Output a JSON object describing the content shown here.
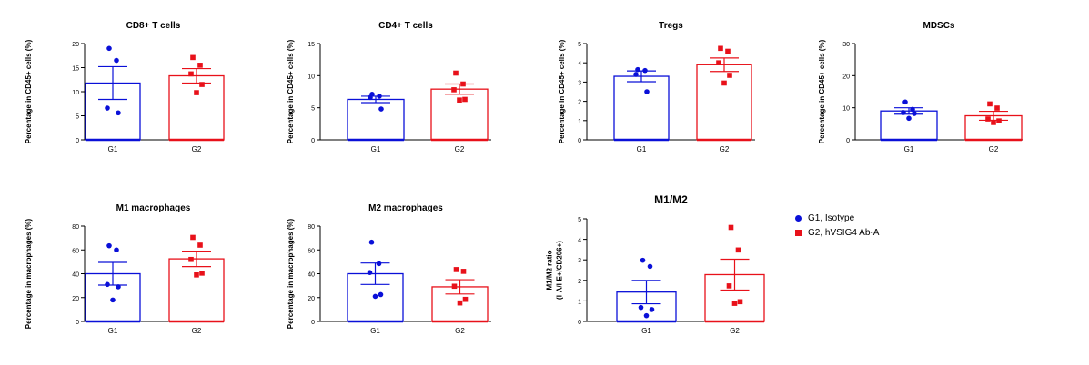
{
  "colors": {
    "g1": "#0a10d8",
    "g2": "#e8111a"
  },
  "legend": [
    {
      "label": "G1, Isotype",
      "marker": "circle",
      "color": "#0a10d8"
    },
    {
      "label": "G2, hVSIG4 Ab-A",
      "marker": "square",
      "color": "#e8111a"
    }
  ],
  "chart_data": [
    {
      "type": "bar",
      "title": "CD8+ T cells",
      "ylabel": "Percentage in CD45+ cells (%)",
      "categories": [
        "G1",
        "G2"
      ],
      "ylim": [
        0,
        20
      ],
      "yticks": [
        0,
        5,
        10,
        15,
        20
      ],
      "values": [
        11.8,
        13.3
      ],
      "sem": [
        3.4,
        1.5
      ],
      "points": [
        [
          19,
          16.5,
          6.6,
          5.6
        ],
        [
          17.1,
          15.5,
          13.7,
          11.5,
          9.8
        ]
      ]
    },
    {
      "type": "bar",
      "title": "CD4+ T cells",
      "ylabel": "Percentage in CD45+ cells (%)",
      "categories": [
        "G1",
        "G2"
      ],
      "ylim": [
        0,
        15
      ],
      "yticks": [
        0,
        5,
        10,
        15
      ],
      "values": [
        6.3,
        7.9
      ],
      "sem": [
        0.5,
        0.8
      ],
      "points": [
        [
          7.1,
          6.8,
          6.6,
          4.8
        ],
        [
          10.4,
          8.7,
          7.8,
          6.3,
          6.2
        ]
      ]
    },
    {
      "type": "bar",
      "title": "Tregs",
      "ylabel": "Percentage in CD45+ cells (%)",
      "categories": [
        "G1",
        "G2"
      ],
      "ylim": [
        0,
        5
      ],
      "yticks": [
        0,
        1,
        2,
        3,
        4,
        5
      ],
      "values": [
        3.3,
        3.9
      ],
      "sem": [
        0.28,
        0.35
      ],
      "points": [
        [
          3.65,
          3.6,
          3.4,
          2.5
        ],
        [
          4.75,
          4.6,
          4.0,
          3.35,
          2.95
        ]
      ]
    },
    {
      "type": "bar",
      "title": "MDSCs",
      "ylabel": "Percentage in CD45+ cells (%)",
      "categories": [
        "G1",
        "G2"
      ],
      "ylim": [
        0,
        30
      ],
      "yticks": [
        0,
        10,
        20,
        30
      ],
      "values": [
        9.0,
        7.5
      ],
      "sem": [
        1.0,
        1.4
      ],
      "points": [
        [
          11.8,
          9.5,
          8.5,
          8.2,
          6.7
        ],
        [
          11.2,
          9.9,
          6.5,
          5.9,
          5.4
        ]
      ]
    },
    {
      "type": "bar",
      "title": "M1 macrophages",
      "ylabel": "Percentage in macrophages (%)",
      "categories": [
        "G1",
        "G2"
      ],
      "ylim": [
        0,
        80
      ],
      "yticks": [
        0,
        20,
        40,
        60,
        80
      ],
      "values": [
        40,
        52.5
      ],
      "sem": [
        9.5,
        6.5
      ],
      "points": [
        [
          63.5,
          60,
          31,
          29,
          18
        ],
        [
          70.5,
          64,
          52,
          40.5,
          39
        ]
      ]
    },
    {
      "type": "bar",
      "title": "M2 macrophages",
      "ylabel": "Percentage in macrophages (%)",
      "categories": [
        "G1",
        "G2"
      ],
      "ylim": [
        0,
        80
      ],
      "yticks": [
        0,
        20,
        40,
        60,
        80
      ],
      "values": [
        40,
        29
      ],
      "sem": [
        9,
        6
      ],
      "points": [
        [
          66.5,
          48.5,
          41,
          22.5,
          21
        ],
        [
          43.5,
          42,
          29.5,
          18.5,
          15.5
        ]
      ]
    },
    {
      "type": "bar",
      "title": "M1/M2",
      "ylabel": "M1/M2 ratio\n(I-A/I-E+/CD206+)",
      "categories": [
        "G1",
        "G2"
      ],
      "ylim": [
        0,
        5
      ],
      "yticks": [
        0,
        1,
        2,
        3,
        4,
        5
      ],
      "values": [
        1.43,
        2.28
      ],
      "sem": [
        0.57,
        0.75
      ],
      "points": [
        [
          2.98,
          2.68,
          0.68,
          0.58,
          0.28
        ],
        [
          4.58,
          3.48,
          1.73,
          0.96,
          0.88
        ]
      ]
    }
  ]
}
